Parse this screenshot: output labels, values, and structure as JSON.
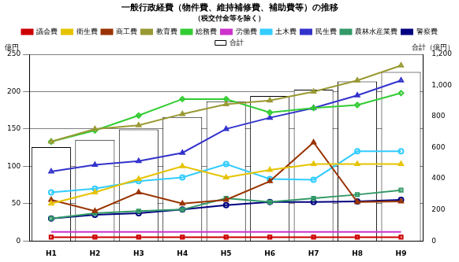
{
  "chart_data": {
    "type": "line",
    "title": "一般行政経費（物件費、維持補修費、補助費等）の推移",
    "subtitle": "（税交付金等を除く）",
    "y_label": "億円",
    "y2_label": "合計（億円）",
    "categories": [
      "H1",
      "H2",
      "H3",
      "H4",
      "H5",
      "H6",
      "H7",
      "H8",
      "H9"
    ],
    "ylim": [
      0,
      250
    ],
    "yticks": [
      0,
      50,
      100,
      150,
      200,
      250
    ],
    "y2lim": [
      0,
      1200
    ],
    "y2ticks": [
      0,
      200,
      400,
      600,
      800,
      1000,
      1200
    ],
    "legend": "top",
    "series": [
      {
        "name": "議会費",
        "color": "#cc0000",
        "marker": "square",
        "values": [
          5,
          5,
          5,
          5,
          5,
          5,
          5,
          5,
          5
        ]
      },
      {
        "name": "衛生費",
        "color": "#e6c300",
        "marker": "triangle",
        "values": [
          50,
          65,
          83,
          100,
          85,
          95,
          103,
          103,
          103
        ]
      },
      {
        "name": "商工費",
        "color": "#993300",
        "marker": "triangle",
        "values": [
          55,
          40,
          65,
          50,
          55,
          80,
          132,
          52,
          53
        ]
      },
      {
        "name": "教育費",
        "color": "#999933",
        "marker": "triangle",
        "values": [
          133,
          150,
          155,
          170,
          183,
          188,
          200,
          215,
          235
        ]
      },
      {
        "name": "総務費",
        "color": "#33cc33",
        "marker": "diamond",
        "values": [
          133,
          148,
          168,
          190,
          190,
          172,
          178,
          182,
          198
        ]
      },
      {
        "name": "労働費",
        "color": "#cc33cc",
        "marker": "none",
        "values": [
          12,
          12,
          12,
          12,
          12,
          12,
          12,
          12,
          12
        ]
      },
      {
        "name": "土木費",
        "color": "#33ccff",
        "marker": "circle",
        "values": [
          65,
          70,
          80,
          85,
          103,
          83,
          82,
          120,
          120
        ]
      },
      {
        "name": "合計",
        "color": "#ffffff",
        "type": "bar",
        "axis": "y2",
        "values": [
          603,
          650,
          717,
          797,
          898,
          932,
          972,
          1026,
          1086
        ]
      },
      {
        "name": "民生費",
        "color": "#3333cc",
        "marker": "triangle",
        "values": [
          93,
          102,
          107,
          118,
          150,
          165,
          178,
          195,
          215
        ]
      },
      {
        "name": "農林水産業費",
        "color": "#339966",
        "marker": "square",
        "values": [
          30,
          37,
          40,
          42,
          57,
          52,
          57,
          62,
          68
        ]
      },
      {
        "name": "警察費",
        "color": "#000080",
        "marker": "circle",
        "values": [
          30,
          35,
          37,
          42,
          48,
          52,
          52,
          53,
          55
        ]
      }
    ]
  }
}
